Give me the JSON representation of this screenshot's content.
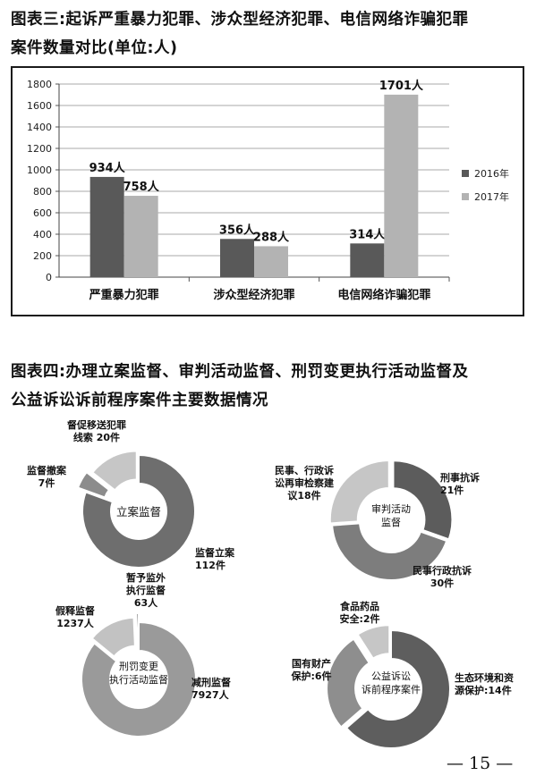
{
  "headings": {
    "chart3_line1": "图表三:起诉严重暴力犯罪、涉众型经济犯罪、电信网络诈骗犯罪",
    "chart3_line2": "案件数量对比(单位:人)",
    "chart4_line1": "图表四:办理立案监督、审判活动监督、刑罚变更执行活动监督及",
    "chart4_line2": "公益诉讼诉前程序案件主要数据情况"
  },
  "page_number": "— 15 —",
  "chart_data": [
    {
      "type": "bar",
      "categories": [
        "严重暴力犯罪",
        "涉众型经济犯罪",
        "电信网络诈骗犯罪"
      ],
      "series": [
        {
          "name": "2016年",
          "values": [
            934,
            356,
            314
          ],
          "color": "#595959"
        },
        {
          "name": "2017年",
          "values": [
            758,
            288,
            1701
          ],
          "color": "#b3b3b3"
        }
      ],
      "value_labels": [
        [
          "934人",
          "356人",
          "314人"
        ],
        [
          "758人",
          "288人",
          "1701人"
        ]
      ],
      "ylim": [
        0,
        1800
      ],
      "yticks": [
        "0",
        "200",
        "400",
        "600",
        "800",
        "1000",
        "1200",
        "1400",
        "1600",
        "1800"
      ],
      "grid": true,
      "legend": "right"
    },
    {
      "type": "pie",
      "center_label": [
        "立案监督"
      ],
      "slices": [
        {
          "label": [
            "监督立案",
            "112件"
          ],
          "value": 112,
          "color": "#6e6e6e"
        },
        {
          "label": [
            "监督撤案",
            "7件"
          ],
          "value": 7,
          "color": "#8c8c8c"
        },
        {
          "label": [
            "督促移送犯罪",
            "线索 20件"
          ],
          "value": 20,
          "color": "#c6c6c6"
        }
      ]
    },
    {
      "type": "pie",
      "center_label": [
        "审判活动",
        "监督"
      ],
      "slices": [
        {
          "label": [
            "刑事抗诉",
            "21件"
          ],
          "value": 21,
          "color": "#5c5c5c"
        },
        {
          "label": [
            "民事行政抗诉",
            "30件"
          ],
          "value": 30,
          "color": "#7d7d7d"
        },
        {
          "label": [
            "民事、行政诉",
            "讼再审检察建",
            "议18件"
          ],
          "value": 18,
          "color": "#c6c6c6"
        }
      ]
    },
    {
      "type": "pie",
      "center_label": [
        "刑罚变更",
        "执行活动监督"
      ],
      "slices": [
        {
          "label": [
            "减刑监督",
            "7927人"
          ],
          "value": 7927,
          "color": "#9a9a9a"
        },
        {
          "label": [
            "假释监督",
            "1237人"
          ],
          "value": 1237,
          "color": "#c2c2c2"
        },
        {
          "label": [
            "暂予监外",
            "执行监督",
            "63人"
          ],
          "value": 63,
          "color": "#6e6e6e"
        }
      ]
    },
    {
      "type": "pie",
      "center_label": [
        "公益诉讼",
        "诉前程序案件"
      ],
      "slices": [
        {
          "label": [
            "生态环境和资",
            "源保护:14件"
          ],
          "value": 14,
          "color": "#5e5e5e"
        },
        {
          "label": [
            "国有财产",
            "保护:6件"
          ],
          "value": 6,
          "color": "#8e8e8e"
        },
        {
          "label": [
            "食品药品",
            "安全:2件"
          ],
          "value": 2,
          "color": "#c6c6c6"
        }
      ]
    }
  ]
}
